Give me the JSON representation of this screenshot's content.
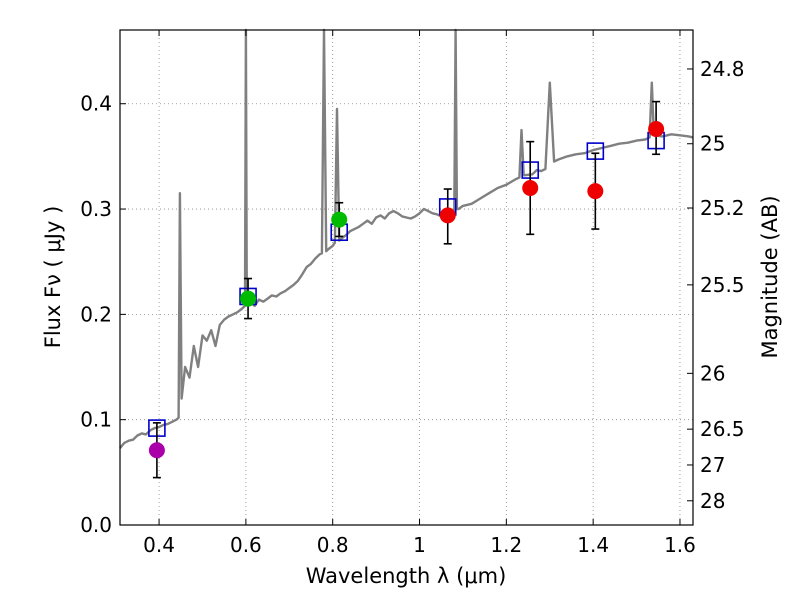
{
  "chart_data": {
    "type": "scatter",
    "xlabel": "Wavelength  λ (μm)",
    "ylabel": "Flux  Fν  ( μJy )",
    "y2label": "Magnitude (AB)",
    "xlim": [
      0.31,
      1.63
    ],
    "ylim": [
      0.0,
      0.47
    ],
    "grid": true,
    "x_ticks": [
      0.4,
      0.6,
      0.8,
      1.0,
      1.2,
      1.4,
      1.6
    ],
    "x_tick_labels": [
      "0.4",
      "0.6",
      "0.8",
      "1",
      "1.2",
      "1.4",
      "1.6"
    ],
    "y_ticks": [
      0.0,
      0.1,
      0.2,
      0.3,
      0.4
    ],
    "y_tick_labels": [
      "0.0",
      "0.1",
      "0.2",
      "0.3",
      "0.4"
    ],
    "magnitude_ticks": [
      {
        "label": "24.8",
        "flux": 0.433
      },
      {
        "label": "25",
        "flux": 0.362
      },
      {
        "label": "25.2",
        "flux": 0.301
      },
      {
        "label": "25.5",
        "flux": 0.228
      },
      {
        "label": "26",
        "flux": 0.144
      },
      {
        "label": "26.5",
        "flux": 0.091
      },
      {
        "label": "27",
        "flux": 0.057
      },
      {
        "label": "28",
        "flux": 0.023
      }
    ],
    "colors": {
      "model": "#808080",
      "model_box": "#0000cc",
      "violet": "#aa00aa",
      "green": "#00bb00",
      "red": "#ee0000",
      "errorbar": "#000000",
      "grid": "#888888"
    },
    "model_spectrum": [
      [
        0.31,
        0.073
      ],
      [
        0.32,
        0.078
      ],
      [
        0.33,
        0.08
      ],
      [
        0.34,
        0.081
      ],
      [
        0.35,
        0.085
      ],
      [
        0.36,
        0.087
      ],
      [
        0.37,
        0.086
      ],
      [
        0.38,
        0.09
      ],
      [
        0.39,
        0.092
      ],
      [
        0.4,
        0.093
      ],
      [
        0.41,
        0.095
      ],
      [
        0.42,
        0.096
      ],
      [
        0.43,
        0.098
      ],
      [
        0.44,
        0.1
      ],
      [
        0.445,
        0.102
      ],
      [
        0.448,
        0.315
      ],
      [
        0.452,
        0.12
      ],
      [
        0.46,
        0.15
      ],
      [
        0.47,
        0.14
      ],
      [
        0.48,
        0.17
      ],
      [
        0.49,
        0.15
      ],
      [
        0.5,
        0.18
      ],
      [
        0.51,
        0.175
      ],
      [
        0.52,
        0.185
      ],
      [
        0.53,
        0.17
      ],
      [
        0.54,
        0.19
      ],
      [
        0.55,
        0.195
      ],
      [
        0.56,
        0.198
      ],
      [
        0.57,
        0.2
      ],
      [
        0.58,
        0.202
      ],
      [
        0.59,
        0.205
      ],
      [
        0.598,
        0.208
      ],
      [
        0.6,
        0.47
      ],
      [
        0.602,
        0.21
      ],
      [
        0.61,
        0.212
      ],
      [
        0.62,
        0.208
      ],
      [
        0.63,
        0.214
      ],
      [
        0.64,
        0.212
      ],
      [
        0.65,
        0.215
      ],
      [
        0.66,
        0.218
      ],
      [
        0.67,
        0.217
      ],
      [
        0.68,
        0.22
      ],
      [
        0.69,
        0.222
      ],
      [
        0.7,
        0.225
      ],
      [
        0.71,
        0.228
      ],
      [
        0.72,
        0.232
      ],
      [
        0.73,
        0.238
      ],
      [
        0.74,
        0.245
      ],
      [
        0.75,
        0.248
      ],
      [
        0.76,
        0.253
      ],
      [
        0.77,
        0.257
      ],
      [
        0.775,
        0.258
      ],
      [
        0.78,
        0.47
      ],
      [
        0.785,
        0.26
      ],
      [
        0.79,
        0.262
      ],
      [
        0.8,
        0.265
      ],
      [
        0.805,
        0.268
      ],
      [
        0.81,
        0.395
      ],
      [
        0.815,
        0.27
      ],
      [
        0.82,
        0.272
      ],
      [
        0.83,
        0.275
      ],
      [
        0.84,
        0.279
      ],
      [
        0.85,
        0.281
      ],
      [
        0.86,
        0.283
      ],
      [
        0.87,
        0.286
      ],
      [
        0.88,
        0.289
      ],
      [
        0.89,
        0.286
      ],
      [
        0.9,
        0.292
      ],
      [
        0.91,
        0.294
      ],
      [
        0.92,
        0.291
      ],
      [
        0.93,
        0.296
      ],
      [
        0.94,
        0.298
      ],
      [
        0.95,
        0.296
      ],
      [
        0.96,
        0.293
      ],
      [
        0.97,
        0.292
      ],
      [
        0.98,
        0.291
      ],
      [
        0.99,
        0.293
      ],
      [
        1.0,
        0.296
      ],
      [
        1.01,
        0.3
      ],
      [
        1.02,
        0.298
      ],
      [
        1.03,
        0.296
      ],
      [
        1.04,
        0.295
      ],
      [
        1.05,
        0.293
      ],
      [
        1.06,
        0.292
      ],
      [
        1.07,
        0.294
      ],
      [
        1.08,
        0.298
      ],
      [
        1.083,
        0.47
      ],
      [
        1.086,
        0.3
      ],
      [
        1.09,
        0.3
      ],
      [
        1.1,
        0.303
      ],
      [
        1.12,
        0.305
      ],
      [
        1.14,
        0.31
      ],
      [
        1.16,
        0.315
      ],
      [
        1.18,
        0.32
      ],
      [
        1.2,
        0.323
      ],
      [
        1.22,
        0.328
      ],
      [
        1.23,
        0.33
      ],
      [
        1.235,
        0.375
      ],
      [
        1.24,
        0.332
      ],
      [
        1.26,
        0.333
      ],
      [
        1.27,
        0.337
      ],
      [
        1.28,
        0.336
      ],
      [
        1.29,
        0.338
      ],
      [
        1.3,
        0.42
      ],
      [
        1.31,
        0.345
      ],
      [
        1.32,
        0.347
      ],
      [
        1.34,
        0.35
      ],
      [
        1.36,
        0.352
      ],
      [
        1.38,
        0.353
      ],
      [
        1.4,
        0.356
      ],
      [
        1.42,
        0.358
      ],
      [
        1.44,
        0.36
      ],
      [
        1.46,
        0.362
      ],
      [
        1.48,
        0.363
      ],
      [
        1.5,
        0.365
      ],
      [
        1.52,
        0.366
      ],
      [
        1.53,
        0.368
      ],
      [
        1.535,
        0.42
      ],
      [
        1.54,
        0.37
      ],
      [
        1.56,
        0.369
      ],
      [
        1.58,
        0.371
      ],
      [
        1.6,
        0.37
      ],
      [
        1.62,
        0.369
      ],
      [
        1.63,
        0.368
      ]
    ],
    "model_photometry": [
      {
        "x": 0.395,
        "y": 0.092
      },
      {
        "x": 0.605,
        "y": 0.217
      },
      {
        "x": 0.815,
        "y": 0.278
      },
      {
        "x": 1.065,
        "y": 0.302
      },
      {
        "x": 1.255,
        "y": 0.337
      },
      {
        "x": 1.405,
        "y": 0.355
      },
      {
        "x": 1.545,
        "y": 0.365
      }
    ],
    "observed": [
      {
        "x": 0.395,
        "y": 0.071,
        "err_low": 0.026,
        "err_high": 0.026,
        "color": "#aa00aa"
      },
      {
        "x": 0.605,
        "y": 0.215,
        "err_low": 0.019,
        "err_high": 0.019,
        "color": "#00bb00"
      },
      {
        "x": 0.815,
        "y": 0.29,
        "err_low": 0.016,
        "err_high": 0.016,
        "color": "#00bb00"
      },
      {
        "x": 1.065,
        "y": 0.294,
        "err_low": 0.027,
        "err_high": 0.025,
        "color": "#ee0000"
      },
      {
        "x": 1.255,
        "y": 0.32,
        "err_low": 0.044,
        "err_high": 0.044,
        "color": "#ee0000"
      },
      {
        "x": 1.405,
        "y": 0.317,
        "err_low": 0.036,
        "err_high": 0.036,
        "color": "#ee0000"
      },
      {
        "x": 1.545,
        "y": 0.376,
        "err_low": 0.024,
        "err_high": 0.026,
        "color": "#ee0000"
      }
    ]
  }
}
